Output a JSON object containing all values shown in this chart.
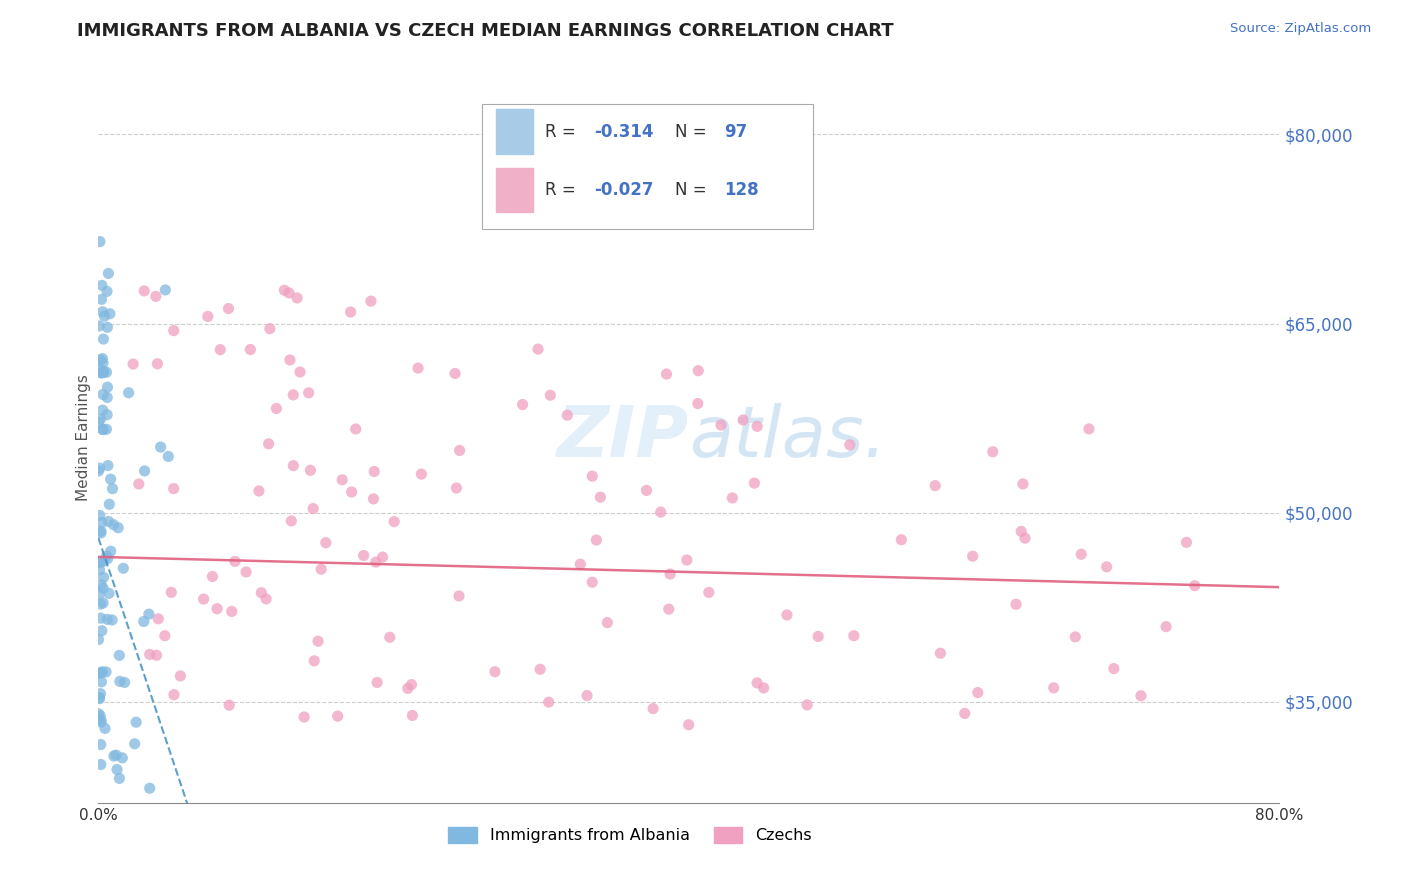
{
  "title": "IMMIGRANTS FROM ALBANIA VS CZECH MEDIAN EARNINGS CORRELATION CHART",
  "source": "Source: ZipAtlas.com",
  "ylabel": "Median Earnings",
  "yticks": [
    35000,
    50000,
    65000,
    80000
  ],
  "ytick_labels": [
    "$35,000",
    "$50,000",
    "$65,000",
    "$80,000"
  ],
  "xlim": [
    0.0,
    0.8
  ],
  "ylim": [
    27000,
    85000
  ],
  "legend_label_albania": "Immigrants from Albania",
  "legend_label_czech": "Czechs",
  "corr_r1": "-0.314",
  "corr_n1": "97",
  "corr_r2": "-0.027",
  "corr_n2": "128",
  "watermark": "ZIPatlas.",
  "background_color": "#ffffff",
  "grid_color": "#c8c8c8",
  "title_color": "#222222",
  "title_fontsize": 13,
  "blue_scatter_color": "#80b8e0",
  "pink_scatter_color": "#f0a0c0",
  "blue_line_color": "#4090c0",
  "pink_line_color": "#e06080",
  "tick_color": "#4472c4",
  "source_color": "#4472c4"
}
